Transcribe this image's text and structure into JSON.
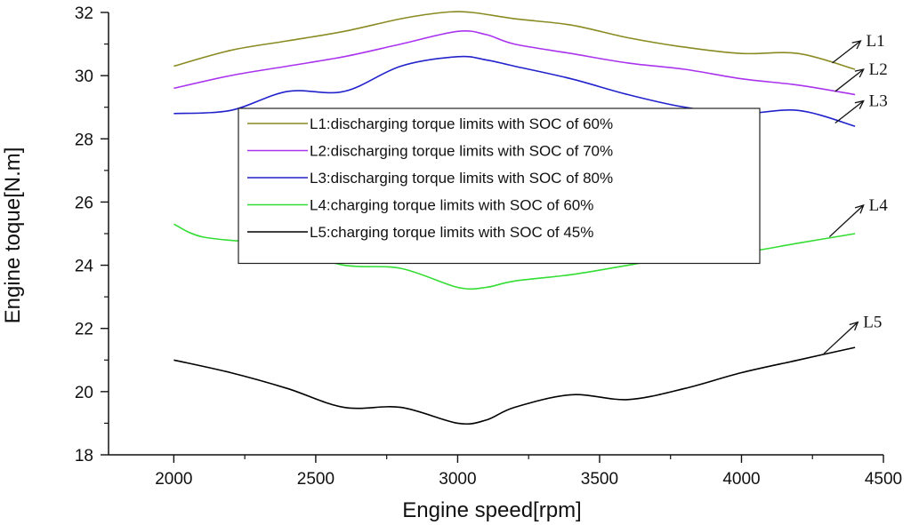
{
  "chart_data": {
    "type": "line",
    "title": "",
    "xlabel": "Engine speed[rpm]",
    "ylabel": "Engine toque[N.m]",
    "xlim": [
      1770,
      4500
    ],
    "ylim": [
      18,
      32
    ],
    "xticks": [
      2000,
      2500,
      3000,
      3500,
      4000,
      4500
    ],
    "yticks": [
      18,
      20,
      22,
      24,
      26,
      28,
      30,
      32
    ],
    "xtick_labels": [
      "2000",
      "2500",
      "3000",
      "3500",
      "4000",
      "4500"
    ],
    "ytick_labels": [
      "18",
      "20",
      "22",
      "24",
      "26",
      "28",
      "30",
      "32"
    ],
    "grid": false,
    "legend_position": "upper-center",
    "series": [
      {
        "id": "L5",
        "name": "L5:charging torque limits with SOC of 45%",
        "color": "#000000",
        "x": [
          2000,
          2200,
          2400,
          2600,
          2800,
          3000,
          3100,
          3200,
          3400,
          3600,
          3800,
          4000,
          4200,
          4400
        ],
        "y": [
          21.0,
          20.6,
          20.1,
          19.5,
          19.5,
          19.0,
          19.1,
          19.5,
          19.9,
          19.75,
          20.1,
          20.6,
          21.0,
          21.4
        ]
      },
      {
        "id": "L4",
        "name": "L4:charging torque limits with SOC of 60%",
        "color": "#33dd33",
        "x": [
          2000,
          2100,
          2300,
          2400,
          2600,
          2800,
          3000,
          3100,
          3200,
          3400,
          3600,
          3800,
          4000,
          4200,
          4400
        ],
        "y": [
          25.3,
          24.9,
          24.7,
          24.5,
          24.0,
          23.9,
          23.3,
          23.3,
          23.5,
          23.7,
          24.0,
          24.3,
          24.4,
          24.7,
          25.0
        ]
      },
      {
        "id": "L3",
        "name": "L3:discharging torque limits with SOC of 80%",
        "color": "#2222cc",
        "x": [
          2000,
          2200,
          2400,
          2600,
          2800,
          3000,
          3100,
          3200,
          3400,
          3600,
          3800,
          4000,
          4200,
          4400
        ],
        "y": [
          28.8,
          28.9,
          29.5,
          29.5,
          30.3,
          30.6,
          30.5,
          30.3,
          29.9,
          29.4,
          29.0,
          28.8,
          28.9,
          28.4
        ]
      },
      {
        "id": "L2",
        "name": "L2:discharging torque limits with SOC of 70%",
        "color": "#aa33ee",
        "x": [
          2000,
          2200,
          2400,
          2600,
          2800,
          3000,
          3100,
          3200,
          3400,
          3600,
          3800,
          4000,
          4200,
          4400
        ],
        "y": [
          29.6,
          30.0,
          30.3,
          30.6,
          31.0,
          31.4,
          31.3,
          31.0,
          30.7,
          30.4,
          30.2,
          29.9,
          29.7,
          29.4
        ]
      },
      {
        "id": "L1",
        "name": "L1:discharging torque limits with SOC of 60%",
        "color": "#8a8a22",
        "x": [
          2000,
          2200,
          2400,
          2600,
          2800,
          2950,
          3050,
          3200,
          3400,
          3600,
          3800,
          4000,
          4200,
          4400
        ],
        "y": [
          30.3,
          30.8,
          31.1,
          31.4,
          31.8,
          32.0,
          32.0,
          31.8,
          31.6,
          31.2,
          30.9,
          30.7,
          30.7,
          30.2
        ]
      }
    ],
    "annotations": [
      {
        "label": "L1",
        "from": [
          4320,
          30.4
        ],
        "to": [
          4420,
          31.1
        ]
      },
      {
        "label": "L2",
        "from": [
          4330,
          29.5
        ],
        "to": [
          4430,
          30.2
        ]
      },
      {
        "label": "L3",
        "from": [
          4330,
          28.5
        ],
        "to": [
          4430,
          29.2
        ]
      },
      {
        "label": "L4",
        "from": [
          4310,
          24.9
        ],
        "to": [
          4430,
          25.9
        ]
      },
      {
        "label": "L5",
        "from": [
          4290,
          21.2
        ],
        "to": [
          4410,
          22.2
        ]
      }
    ]
  }
}
